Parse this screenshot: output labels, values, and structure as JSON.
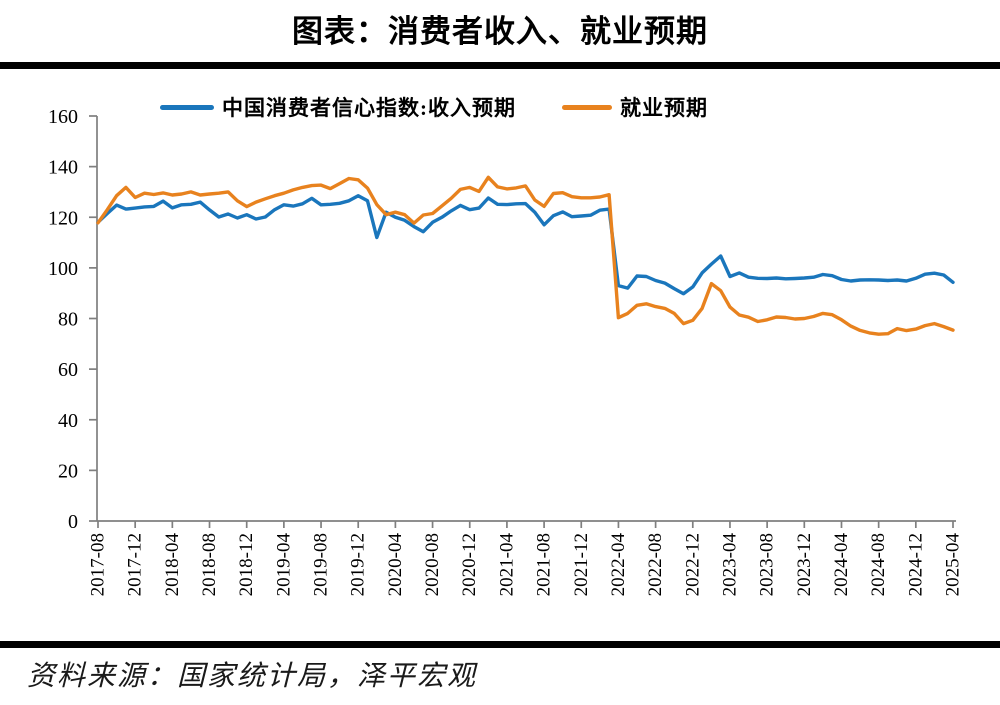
{
  "title": "图表：消费者收入、就业预期",
  "source": {
    "text": "资料来源：国家统计局，泽平宏观"
  },
  "legend": [
    {
      "label": "中国消费者信心指数:收入预期",
      "color": "#1A76BC"
    },
    {
      "label": "就业预期",
      "color": "#E8821E"
    }
  ],
  "chart_data": {
    "type": "line",
    "title": "图表：消费者收入、就业预期",
    "xlabel": "",
    "ylabel": "",
    "ylim": [
      0,
      160
    ],
    "yticks": [
      0,
      20,
      40,
      60,
      80,
      100,
      120,
      140,
      160
    ],
    "grid": false,
    "legend_position": "top",
    "x_axis_tick_labels": [
      "2017-08",
      "2017-12",
      "2018-04",
      "2018-08",
      "2018-12",
      "2019-04",
      "2019-08",
      "2019-12",
      "2020-04",
      "2020-08",
      "2020-12",
      "2021-04",
      "2021-08",
      "2021-12",
      "2022-04",
      "2022-08",
      "2022-12",
      "2023-04",
      "2023-08",
      "2023-12",
      "2024-04",
      "2024-08",
      "2024-12",
      "2025-04"
    ],
    "x": [
      "2017-08",
      "2017-09",
      "2017-10",
      "2017-11",
      "2017-12",
      "2018-01",
      "2018-02",
      "2018-03",
      "2018-04",
      "2018-05",
      "2018-06",
      "2018-07",
      "2018-08",
      "2018-09",
      "2018-10",
      "2018-11",
      "2018-12",
      "2019-01",
      "2019-02",
      "2019-03",
      "2019-04",
      "2019-05",
      "2019-06",
      "2019-07",
      "2019-08",
      "2019-09",
      "2019-10",
      "2019-11",
      "2019-12",
      "2020-01",
      "2020-02",
      "2020-03",
      "2020-04",
      "2020-05",
      "2020-06",
      "2020-07",
      "2020-08",
      "2020-09",
      "2020-10",
      "2020-11",
      "2020-12",
      "2021-01",
      "2021-02",
      "2021-03",
      "2021-04",
      "2021-05",
      "2021-06",
      "2021-07",
      "2021-08",
      "2021-09",
      "2021-10",
      "2021-11",
      "2021-12",
      "2022-01",
      "2022-02",
      "2022-03",
      "2022-04",
      "2022-05",
      "2022-06",
      "2022-07",
      "2022-08",
      "2022-09",
      "2022-10",
      "2022-11",
      "2022-12",
      "2023-01",
      "2023-02",
      "2023-03",
      "2023-04",
      "2023-05",
      "2023-06",
      "2023-07",
      "2023-08",
      "2023-09",
      "2023-10",
      "2023-11",
      "2023-12",
      "2024-01",
      "2024-02",
      "2024-03",
      "2024-04",
      "2024-05",
      "2024-06",
      "2024-07",
      "2024-08",
      "2024-09",
      "2024-10",
      "2024-11",
      "2024-12",
      "2025-01",
      "2025-02",
      "2025-03",
      "2025-04"
    ],
    "series": [
      {
        "name": "中国消费者信心指数:收入预期",
        "color": "#1A76BC",
        "values": [
          118.0,
          121.5,
          124.8,
          123.2,
          123.6,
          124.1,
          124.3,
          126.4,
          123.7,
          124.9,
          125.1,
          126.0,
          122.9,
          120.1,
          121.3,
          119.7,
          121.0,
          119.3,
          120.1,
          123.0,
          124.9,
          124.4,
          125.3,
          127.5,
          124.9,
          125.1,
          125.5,
          126.5,
          128.5,
          126.5,
          112.0,
          122.0,
          120.0,
          118.8,
          116.3,
          114.3,
          118.0,
          120.0,
          122.5,
          124.7,
          123.0,
          123.6,
          127.6,
          125.1,
          125.0,
          125.3,
          125.4,
          122.0,
          117.0,
          120.6,
          122.1,
          120.2,
          120.5,
          120.8,
          122.8,
          123.2,
          93.0,
          92.0,
          96.8,
          96.6,
          95.0,
          94.0,
          91.8,
          89.8,
          92.5,
          98.0,
          101.5,
          104.7,
          96.6,
          98.0,
          96.3,
          95.9,
          95.8,
          96.0,
          95.7,
          95.8,
          96.0,
          96.3,
          97.4,
          96.9,
          95.4,
          94.8,
          95.2,
          95.3,
          95.2,
          95.0,
          95.2,
          94.8,
          95.9,
          97.5,
          97.9,
          97.2,
          94.3
        ]
      },
      {
        "name": "就业预期",
        "color": "#E8821E",
        "values": [
          117.8,
          123.0,
          128.5,
          131.8,
          127.8,
          129.5,
          129.0,
          129.6,
          128.8,
          129.2,
          130.0,
          128.8,
          129.2,
          129.5,
          130.0,
          126.5,
          124.2,
          126.0,
          127.3,
          128.5,
          129.5,
          130.8,
          131.8,
          132.5,
          132.7,
          131.3,
          133.3,
          135.3,
          134.8,
          131.5,
          125.0,
          121.0,
          122.0,
          121.0,
          117.7,
          120.9,
          121.5,
          124.5,
          127.5,
          131.0,
          131.8,
          130.2,
          135.8,
          132.0,
          131.2,
          131.6,
          132.4,
          126.8,
          124.3,
          129.4,
          129.7,
          128.1,
          127.7,
          127.7,
          128.0,
          128.9,
          80.3,
          82.0,
          85.2,
          85.8,
          84.7,
          84.0,
          82.0,
          78.0,
          79.3,
          84.0,
          93.8,
          91.0,
          84.5,
          81.4,
          80.5,
          78.8,
          79.5,
          80.6,
          80.4,
          79.8,
          80.0,
          80.8,
          82.0,
          81.5,
          79.5,
          77.0,
          75.3,
          74.3,
          73.8,
          74.0,
          76.0,
          75.2,
          75.8,
          77.2,
          78.0,
          76.8,
          75.4
        ]
      }
    ]
  }
}
